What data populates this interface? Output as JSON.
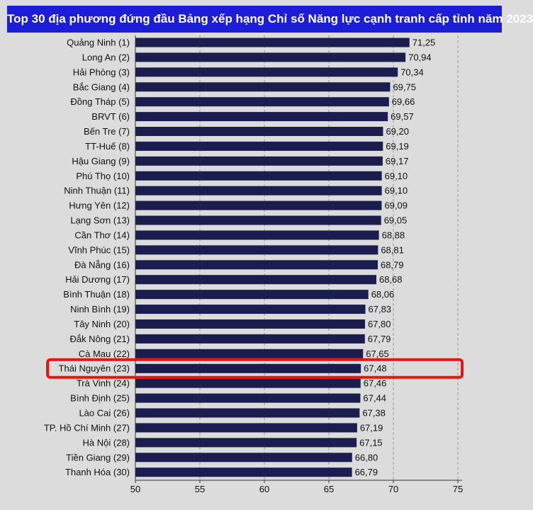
{
  "chart_data": {
    "type": "bar",
    "orientation": "horizontal",
    "title": "Top 30 địa phương đứng đầu Bảng xếp hạng Chỉ số Năng lực cạnh tranh cấp tỉnh năm 2023",
    "categories": [
      "Quảng Ninh (1)",
      "Long An (2)",
      "Hải Phòng (3)",
      "Bắc Giang (4)",
      "Đồng Tháp (5)",
      "BRVT (6)",
      "Bến Tre (7)",
      "TT-Huế (8)",
      "Hậu Giang (9)",
      "Phú Thọ (10)",
      "Ninh Thuận (11)",
      "Hưng Yên (12)",
      "Lạng Sơn (13)",
      "Cần Thơ (14)",
      "Vĩnh Phúc (15)",
      "Đà Nẵng (16)",
      "Hải Dương (17)",
      "Bình Thuận (18)",
      "Ninh Bình (19)",
      "Tây Ninh (20)",
      "Đắk Nông (21)",
      "Cà Mau (22)",
      "Thái Nguyên (23)",
      "Trà Vinh (24)",
      "Bình Định (25)",
      "Lào Cai (26)",
      "TP. Hồ Chí Minh (27)",
      "Hà Nội (28)",
      "Tiền Giang (29)",
      "Thanh Hóa (30)"
    ],
    "values": [
      71.25,
      70.94,
      70.34,
      69.75,
      69.66,
      69.57,
      69.2,
      69.19,
      69.17,
      69.1,
      69.1,
      69.09,
      69.05,
      68.88,
      68.81,
      68.79,
      68.68,
      68.06,
      67.83,
      67.8,
      67.79,
      67.65,
      67.48,
      67.46,
      67.44,
      67.38,
      67.19,
      67.15,
      66.8,
      66.79
    ],
    "value_labels": [
      "71,25",
      "70,94",
      "70,34",
      "69,75",
      "69,66",
      "69,57",
      "69,20",
      "69,19",
      "69,17",
      "69,10",
      "69,10",
      "69,09",
      "69,05",
      "68,88",
      "68,81",
      "68,79",
      "68,68",
      "68,06",
      "67,83",
      "67,80",
      "67,79",
      "67,65",
      "67,48",
      "67,46",
      "67,44",
      "67,38",
      "67,19",
      "67,15",
      "66,80",
      "66,79"
    ],
    "xlim": [
      50,
      75
    ],
    "xticks": [
      "50",
      "55",
      "60",
      "65",
      "70",
      "75"
    ],
    "grid": "vertical dashed",
    "highlighted_category": "Thái Nguyên (23)",
    "colors": {
      "bar": "#1a1d4d",
      "title_background": "#1d1dd8",
      "highlight_box": "#ee1111",
      "grid": "#9a9a9a",
      "background": "#dcdcdc"
    }
  }
}
